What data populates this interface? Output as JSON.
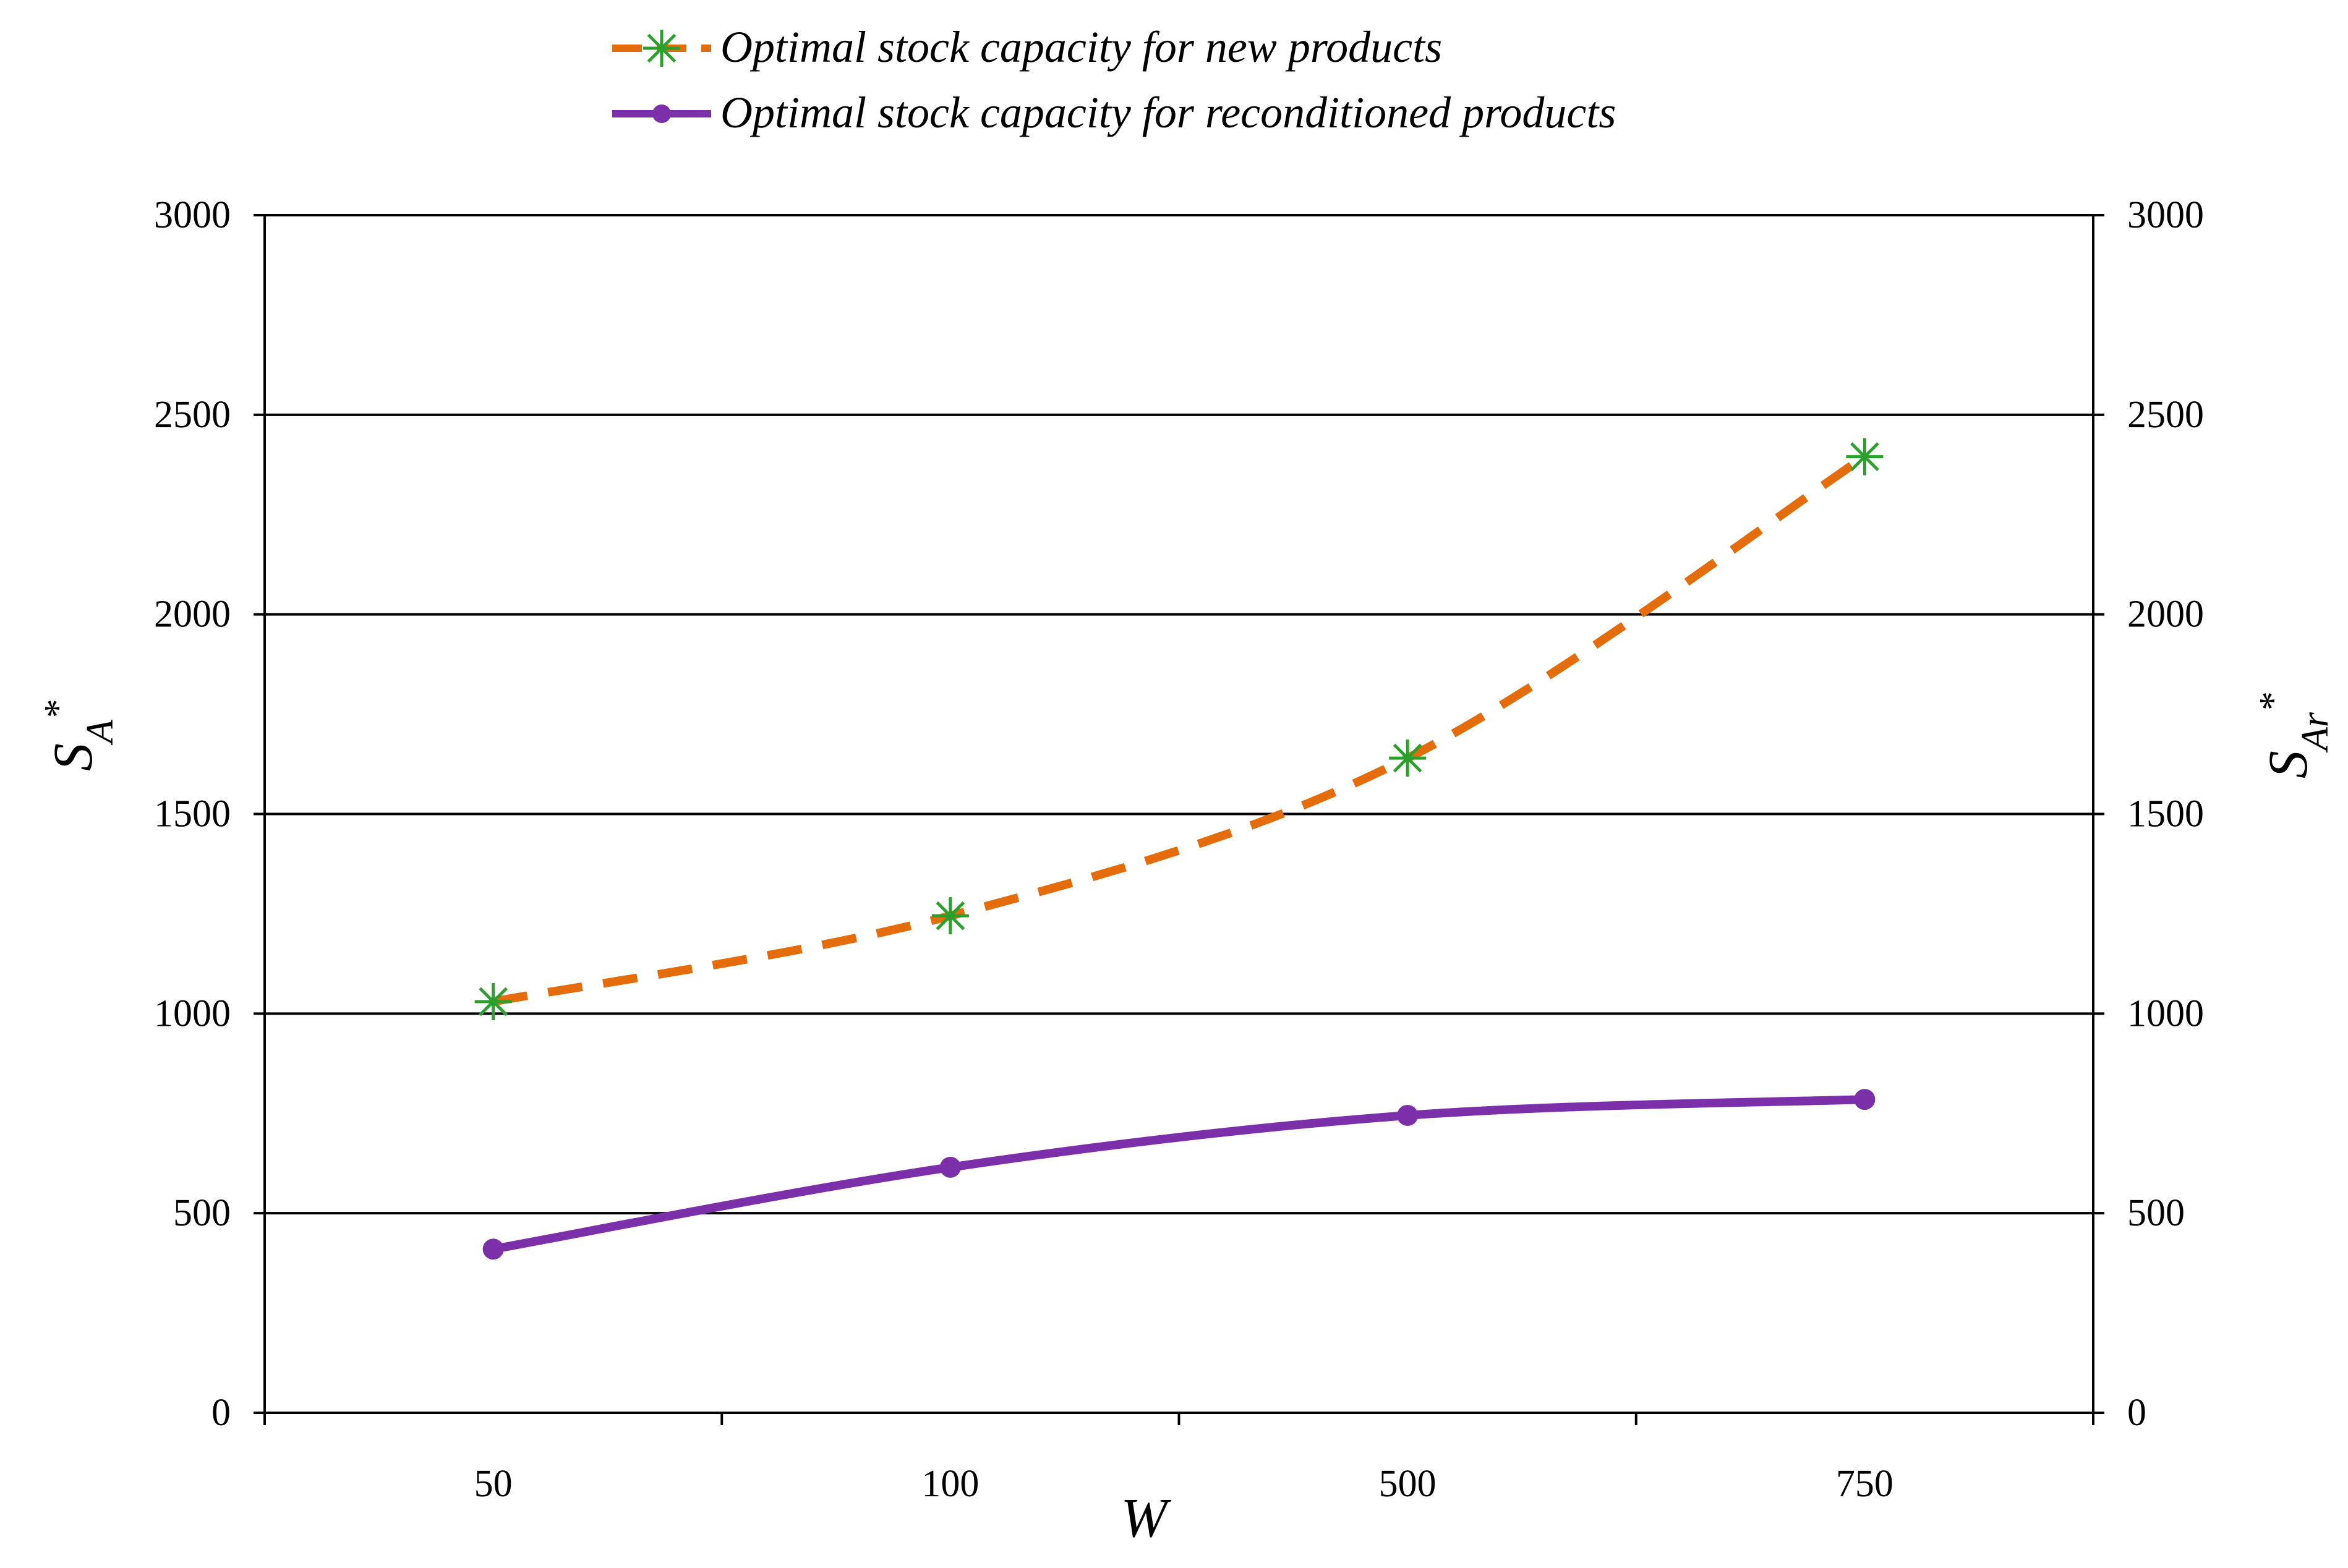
{
  "chart_data": {
    "type": "line",
    "title": "",
    "categories": [
      "50",
      "100",
      "500",
      "750"
    ],
    "xlabel": "W",
    "ylabel": "S_A*",
    "ylabel_main": "S",
    "ylabel_sub": "A",
    "ylabel_sup": "*",
    "y2label": "S_Ar*",
    "y2label_main": "S",
    "y2label_sub": "Ar",
    "y2label_sup": "*",
    "ylim": [
      0,
      3000
    ],
    "y2lim": [
      0,
      3000
    ],
    "yticks": [
      0,
      500,
      1000,
      1500,
      2000,
      2500,
      3000
    ],
    "grid": true,
    "legend_position": "top",
    "series": [
      {
        "name": "Optimal stock capacity for new products",
        "values": [
          1030,
          1245,
          1640,
          2395
        ],
        "line_color": "#E46C0A",
        "marker_color": "#2CA02C",
        "line_style": "dashed",
        "marker": "asterisk"
      },
      {
        "name": "Optimal stock capacity for reconditioned products",
        "values": [
          410,
          615,
          745,
          785
        ],
        "line_color": "#7B2FA8",
        "marker_color": "#7B2FA8",
        "line_style": "solid",
        "marker": "circle"
      }
    ]
  }
}
